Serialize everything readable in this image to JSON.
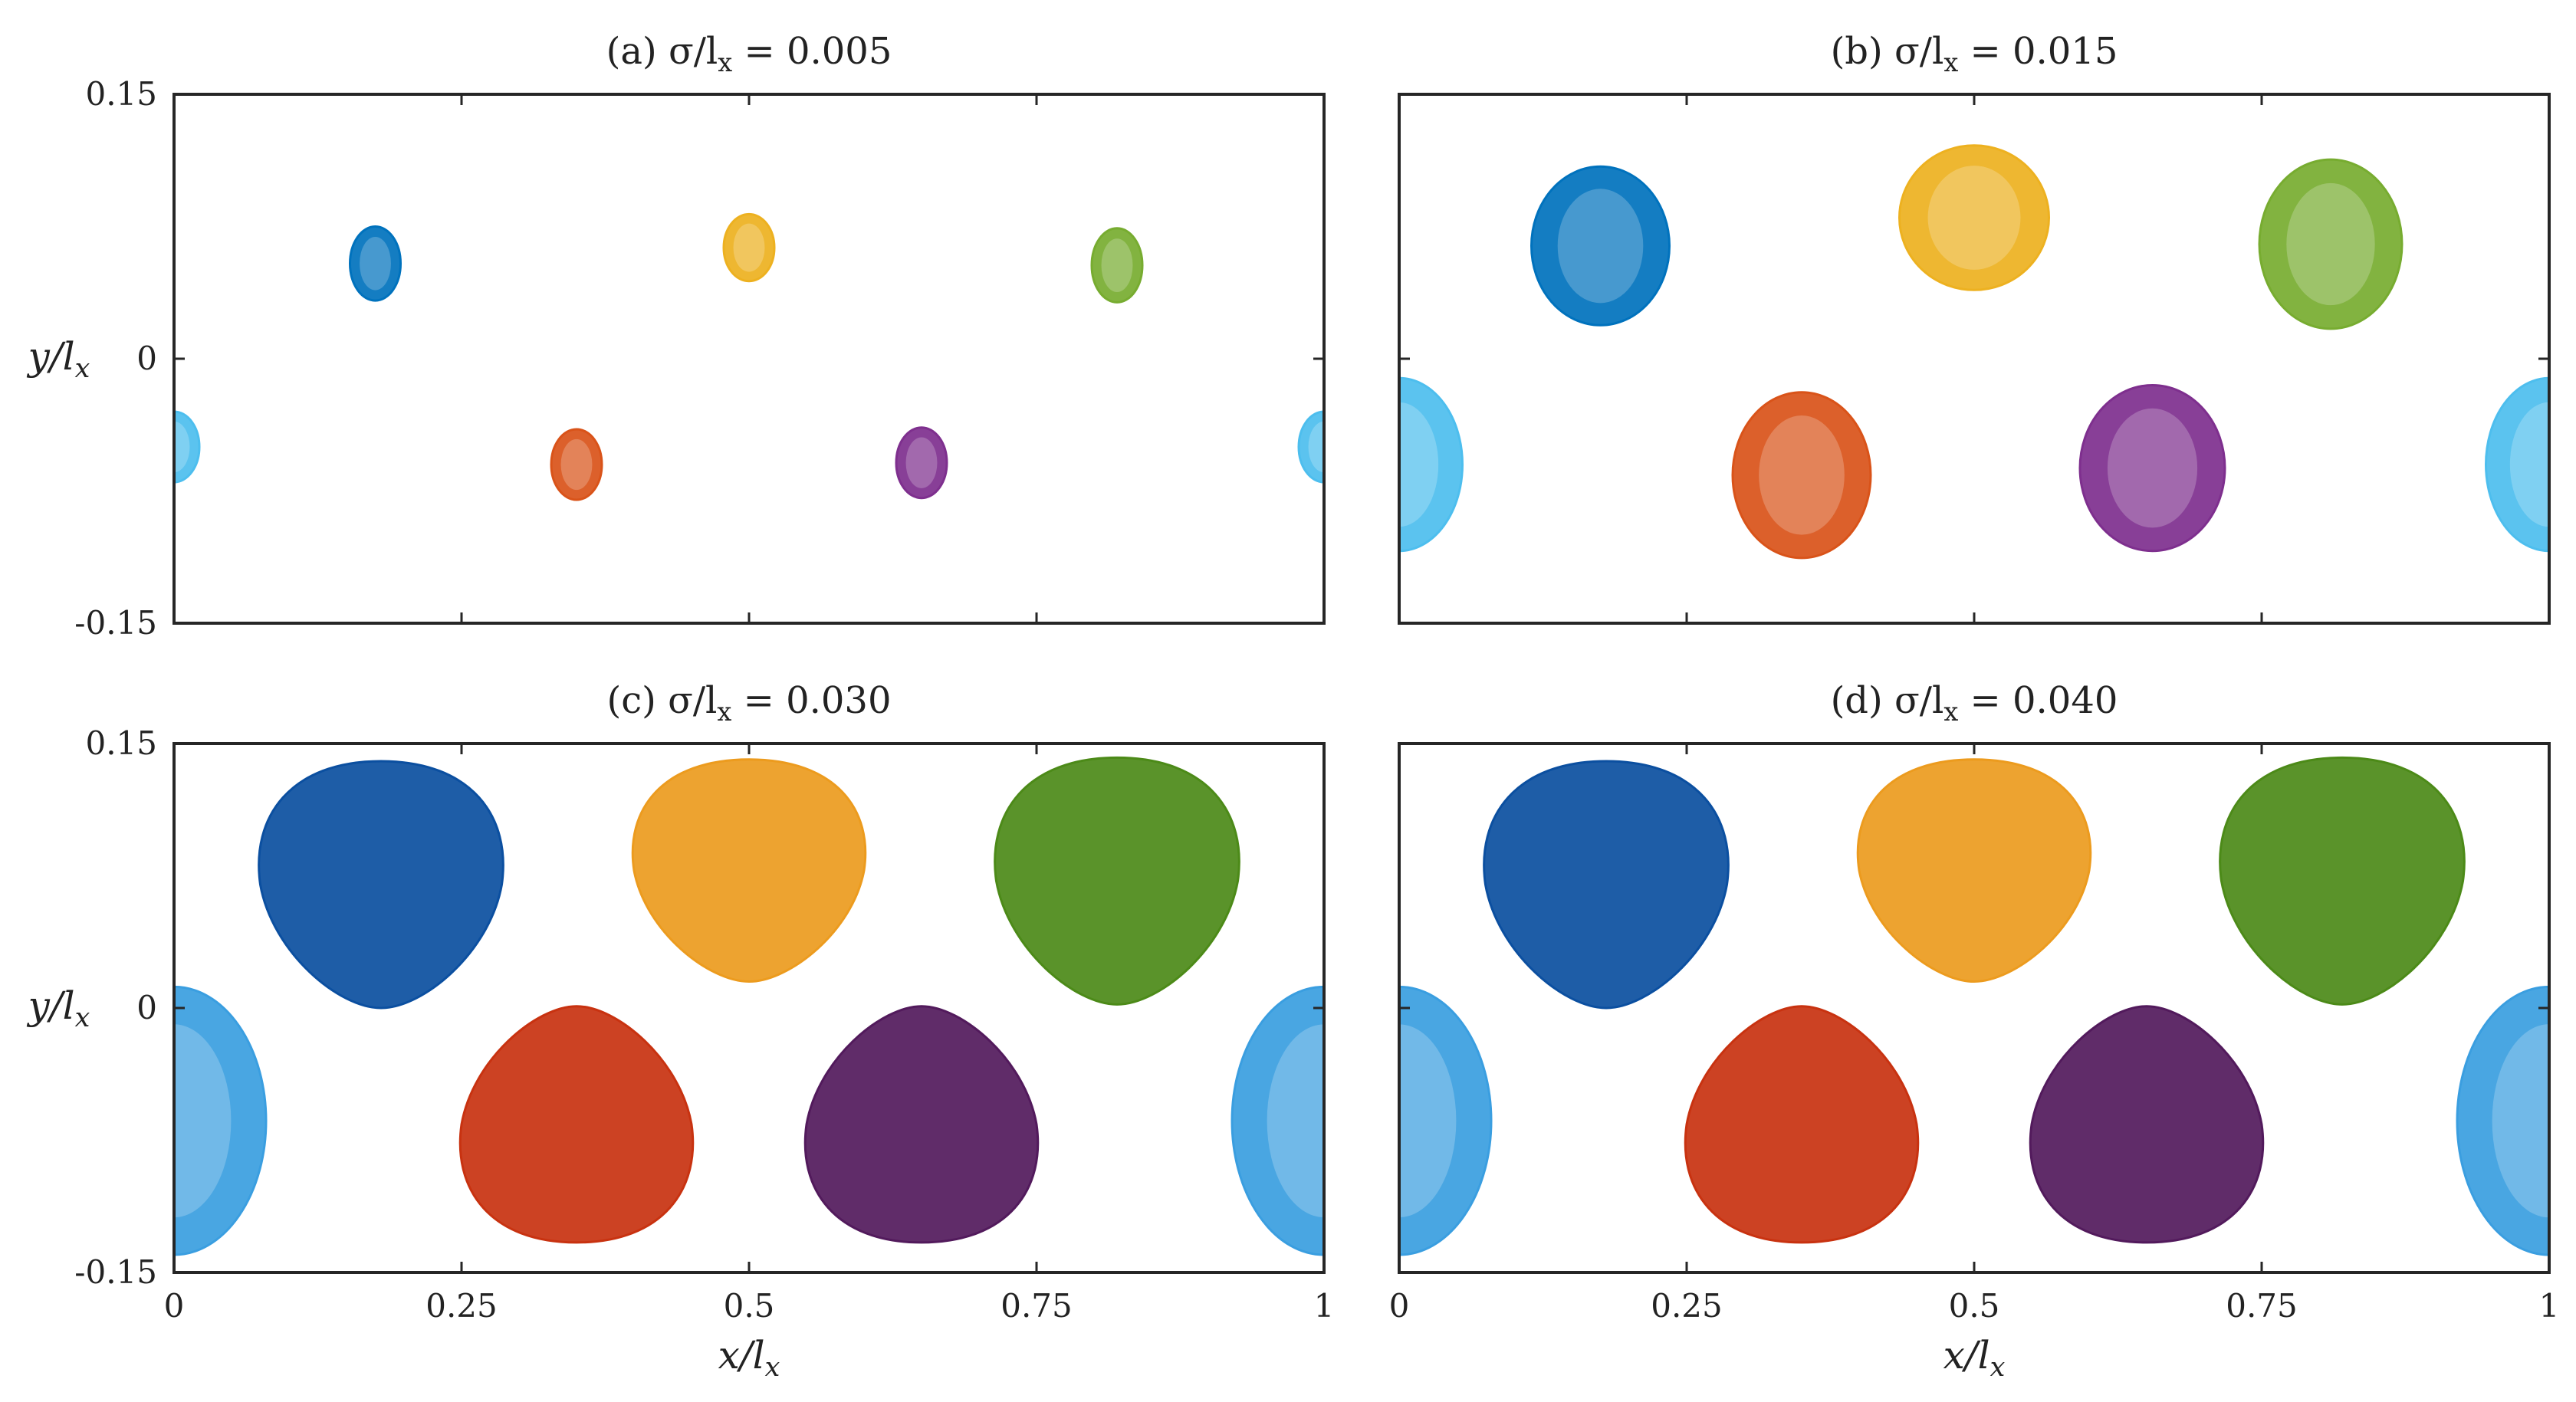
{
  "chart_data": [
    {
      "panel": "a",
      "type": "scatter",
      "title": "(a) σ/l",
      "title_sub": "x",
      "title_value": "= 0.005",
      "sigma_over_lx": 0.005,
      "xlabel": "",
      "xlabel_sub": "",
      "ylabel": "y/l",
      "ylabel_sub": "x",
      "xlim": [
        0,
        1
      ],
      "ylim": [
        -0.15,
        0.15
      ],
      "xticks": [
        0,
        0.25,
        0.5,
        0.75,
        1
      ],
      "xtick_labels": [
        "",
        "",
        "",
        "",
        ""
      ],
      "yticks": [
        -0.15,
        0,
        0.15
      ],
      "ytick_labels": [
        "-0.15",
        "0",
        "0.15"
      ],
      "blobs": [
        {
          "name": "blue",
          "color": "#0072bd",
          "cx": 0.175,
          "cy": 0.054,
          "rx": 0.022,
          "ry": 0.021,
          "shape": "oval"
        },
        {
          "name": "yellow",
          "color": "#edb120",
          "cx": 0.5,
          "cy": 0.063,
          "rx": 0.022,
          "ry": 0.019,
          "shape": "oval"
        },
        {
          "name": "green",
          "color": "#77ac30",
          "cx": 0.82,
          "cy": 0.053,
          "rx": 0.022,
          "ry": 0.021,
          "shape": "oval"
        },
        {
          "name": "red",
          "color": "#d95319",
          "cx": 0.35,
          "cy": -0.06,
          "rx": 0.022,
          "ry": 0.02,
          "shape": "oval"
        },
        {
          "name": "purple",
          "color": "#7e2f8e",
          "cx": 0.65,
          "cy": -0.059,
          "rx": 0.022,
          "ry": 0.02,
          "shape": "oval"
        },
        {
          "name": "lightblue",
          "color": "#4dbeee",
          "cx": 0.0,
          "cy": -0.05,
          "rx": 0.022,
          "ry": 0.02,
          "shape": "oval"
        },
        {
          "name": "lightblue",
          "color": "#4dbeee",
          "cx": 1.0,
          "cy": -0.05,
          "rx": 0.022,
          "ry": 0.02,
          "shape": "oval"
        }
      ]
    },
    {
      "panel": "b",
      "type": "scatter",
      "title": "(b) σ/l",
      "title_sub": "x",
      "title_value": "= 0.015",
      "sigma_over_lx": 0.015,
      "xlabel": "",
      "xlabel_sub": "",
      "ylabel": "",
      "ylabel_sub": "",
      "xlim": [
        0,
        1
      ],
      "ylim": [
        -0.15,
        0.15
      ],
      "xticks": [
        0,
        0.25,
        0.5,
        0.75,
        1
      ],
      "xtick_labels": [
        "",
        "",
        "",
        "",
        ""
      ],
      "yticks": [
        -0.15,
        0,
        0.15
      ],
      "ytick_labels": [
        "",
        "",
        ""
      ],
      "blobs": [
        {
          "name": "blue",
          "color": "#0072bd",
          "cx": 0.175,
          "cy": 0.064,
          "rx": 0.06,
          "ry": 0.045,
          "shape": "round"
        },
        {
          "name": "yellow",
          "color": "#edb120",
          "cx": 0.5,
          "cy": 0.08,
          "rx": 0.065,
          "ry": 0.041,
          "shape": "round"
        },
        {
          "name": "green",
          "color": "#77ac30",
          "cx": 0.81,
          "cy": 0.065,
          "rx": 0.062,
          "ry": 0.048,
          "shape": "round"
        },
        {
          "name": "red",
          "color": "#d95319",
          "cx": 0.35,
          "cy": -0.066,
          "rx": 0.06,
          "ry": 0.047,
          "shape": "round"
        },
        {
          "name": "purple",
          "color": "#7e2f8e",
          "cx": 0.655,
          "cy": -0.062,
          "rx": 0.063,
          "ry": 0.047,
          "shape": "round"
        },
        {
          "name": "lightblue",
          "color": "#4dbeee",
          "cx": 0.0,
          "cy": -0.06,
          "rx": 0.055,
          "ry": 0.049,
          "shape": "round"
        },
        {
          "name": "lightblue",
          "color": "#4dbeee",
          "cx": 1.0,
          "cy": -0.06,
          "rx": 0.055,
          "ry": 0.049,
          "shape": "round"
        }
      ]
    },
    {
      "panel": "c",
      "type": "scatter",
      "title": "(c) σ/l",
      "title_sub": "x",
      "title_value": "= 0.030",
      "sigma_over_lx": 0.03,
      "xlabel": "x/l",
      "xlabel_sub": "x",
      "ylabel": "y/l",
      "ylabel_sub": "x",
      "xlim": [
        0,
        1
      ],
      "ylim": [
        -0.15,
        0.15
      ],
      "xticks": [
        0,
        0.25,
        0.5,
        0.75,
        1
      ],
      "xtick_labels": [
        "0",
        "0.25",
        "0.5",
        "0.75",
        "1"
      ],
      "yticks": [
        -0.15,
        0,
        0.15
      ],
      "ytick_labels": [
        "-0.15",
        "0",
        "0.15"
      ],
      "blobs": [
        {
          "name": "blue",
          "color": "#0b4fa0",
          "cx": 0.18,
          "cy": 0.07,
          "rx": 0.105,
          "ry": 0.07,
          "shape": "tri-down"
        },
        {
          "name": "yellow",
          "color": "#ec9b1e",
          "cx": 0.5,
          "cy": 0.078,
          "rx": 0.1,
          "ry": 0.063,
          "shape": "tri-down"
        },
        {
          "name": "green",
          "color": "#4c8a18",
          "cx": 0.82,
          "cy": 0.072,
          "rx": 0.105,
          "ry": 0.07,
          "shape": "tri-down"
        },
        {
          "name": "red",
          "color": "#c83210",
          "cx": 0.35,
          "cy": -0.066,
          "rx": 0.1,
          "ry": 0.067,
          "shape": "tri-up"
        },
        {
          "name": "purple",
          "color": "#521a5c",
          "cx": 0.65,
          "cy": -0.066,
          "rx": 0.1,
          "ry": 0.067,
          "shape": "tri-up"
        },
        {
          "name": "lightblue",
          "color": "#3a9ee0",
          "cx": 0.0,
          "cy": -0.064,
          "rx": 0.08,
          "ry": 0.076,
          "shape": "round"
        },
        {
          "name": "lightblue",
          "color": "#3a9ee0",
          "cx": 1.0,
          "cy": -0.064,
          "rx": 0.08,
          "ry": 0.076,
          "shape": "round"
        }
      ]
    },
    {
      "panel": "d",
      "type": "scatter",
      "title": "(d) σ/l",
      "title_sub": "x",
      "title_value": "= 0.040",
      "sigma_over_lx": 0.04,
      "xlabel": "x/l",
      "xlabel_sub": "x",
      "ylabel": "",
      "ylabel_sub": "",
      "xlim": [
        0,
        1
      ],
      "ylim": [
        -0.15,
        0.15
      ],
      "xticks": [
        0,
        0.25,
        0.5,
        0.75,
        1
      ],
      "xtick_labels": [
        "0",
        "0.25",
        "0.5",
        "0.75",
        "1"
      ],
      "yticks": [
        -0.15,
        0,
        0.15
      ],
      "ytick_labels": [
        "",
        "",
        ""
      ],
      "blobs": [
        {
          "name": "blue",
          "color": "#0b4fa0",
          "cx": 0.18,
          "cy": 0.07,
          "rx": 0.105,
          "ry": 0.07,
          "shape": "tri-down"
        },
        {
          "name": "yellow",
          "color": "#ec9b1e",
          "cx": 0.5,
          "cy": 0.078,
          "rx": 0.1,
          "ry": 0.063,
          "shape": "tri-down"
        },
        {
          "name": "green",
          "color": "#4c8a18",
          "cx": 0.82,
          "cy": 0.072,
          "rx": 0.105,
          "ry": 0.07,
          "shape": "tri-down"
        },
        {
          "name": "red",
          "color": "#c83210",
          "cx": 0.35,
          "cy": -0.066,
          "rx": 0.1,
          "ry": 0.067,
          "shape": "tri-up"
        },
        {
          "name": "purple",
          "color": "#521a5c",
          "cx": 0.65,
          "cy": -0.066,
          "rx": 0.1,
          "ry": 0.067,
          "shape": "tri-up"
        },
        {
          "name": "lightblue",
          "color": "#3a9ee0",
          "cx": 0.0,
          "cy": -0.064,
          "rx": 0.08,
          "ry": 0.076,
          "shape": "round"
        },
        {
          "name": "lightblue",
          "color": "#3a9ee0",
          "cx": 1.0,
          "cy": -0.064,
          "rx": 0.08,
          "ry": 0.076,
          "shape": "round"
        }
      ]
    }
  ]
}
